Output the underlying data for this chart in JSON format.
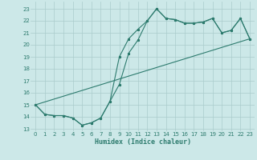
{
  "xlabel": "Humidex (Indice chaleur)",
  "bg_color": "#cce8e8",
  "line_color": "#2d7b6e",
  "grid_color": "#aacccc",
  "xlim": [
    -0.5,
    23.5
  ],
  "ylim": [
    12.8,
    23.6
  ],
  "yticks": [
    13,
    14,
    15,
    16,
    17,
    18,
    19,
    20,
    21,
    22,
    23
  ],
  "xticks": [
    0,
    1,
    2,
    3,
    4,
    5,
    6,
    7,
    8,
    9,
    10,
    11,
    12,
    13,
    14,
    15,
    16,
    17,
    18,
    19,
    20,
    21,
    22,
    23
  ],
  "line1_x": [
    0,
    1,
    2,
    3,
    4,
    5,
    6,
    7,
    8,
    9,
    10,
    11,
    12,
    13,
    14,
    15,
    16,
    17,
    18,
    19,
    20,
    21,
    22,
    23
  ],
  "line1_y": [
    15.0,
    14.2,
    14.1,
    14.1,
    13.9,
    13.3,
    13.5,
    13.9,
    15.3,
    16.7,
    19.3,
    20.4,
    22.0,
    23.0,
    22.2,
    22.1,
    21.8,
    21.8,
    21.9,
    22.2,
    21.0,
    21.2,
    22.2,
    20.5
  ],
  "line2_x": [
    0,
    1,
    2,
    3,
    4,
    5,
    6,
    7,
    8,
    9,
    10,
    11,
    12,
    13,
    14,
    15,
    16,
    17,
    18,
    19,
    20,
    21,
    22,
    23
  ],
  "line2_y": [
    15.0,
    14.2,
    14.1,
    14.1,
    13.9,
    13.3,
    13.5,
    13.9,
    15.3,
    19.0,
    20.5,
    21.3,
    22.0,
    23.0,
    22.2,
    22.1,
    21.8,
    21.8,
    21.9,
    22.2,
    21.0,
    21.2,
    22.2,
    20.5
  ],
  "line3_x": [
    0,
    23
  ],
  "line3_y": [
    15.0,
    20.5
  ]
}
